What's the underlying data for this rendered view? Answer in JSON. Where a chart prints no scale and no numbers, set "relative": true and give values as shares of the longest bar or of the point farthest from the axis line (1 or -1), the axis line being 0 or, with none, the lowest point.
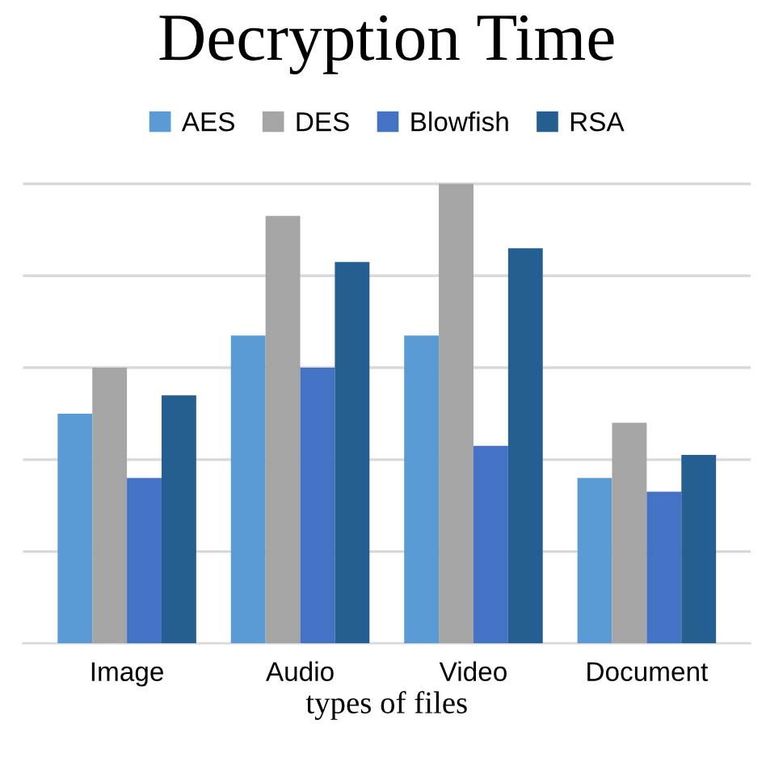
{
  "chart_data": {
    "type": "bar",
    "title": "Decryption Time",
    "xlabel": "types of files",
    "relative": true,
    "categories": [
      "Image",
      "Audio",
      "Video",
      "Document"
    ],
    "series": [
      {
        "name": "AES",
        "color": "#5b9bd5",
        "values": [
          0.5,
          0.67,
          0.67,
          0.36
        ]
      },
      {
        "name": "DES",
        "color": "#a5a5a5",
        "values": [
          0.6,
          0.93,
          1.0,
          0.48
        ]
      },
      {
        "name": "Blowfish",
        "color": "#4472c4",
        "values": [
          0.36,
          0.6,
          0.43,
          0.33
        ]
      },
      {
        "name": "RSA",
        "color": "#255e91",
        "values": [
          0.54,
          0.83,
          0.86,
          0.41
        ]
      }
    ],
    "legend": "top",
    "grid": "y"
  }
}
